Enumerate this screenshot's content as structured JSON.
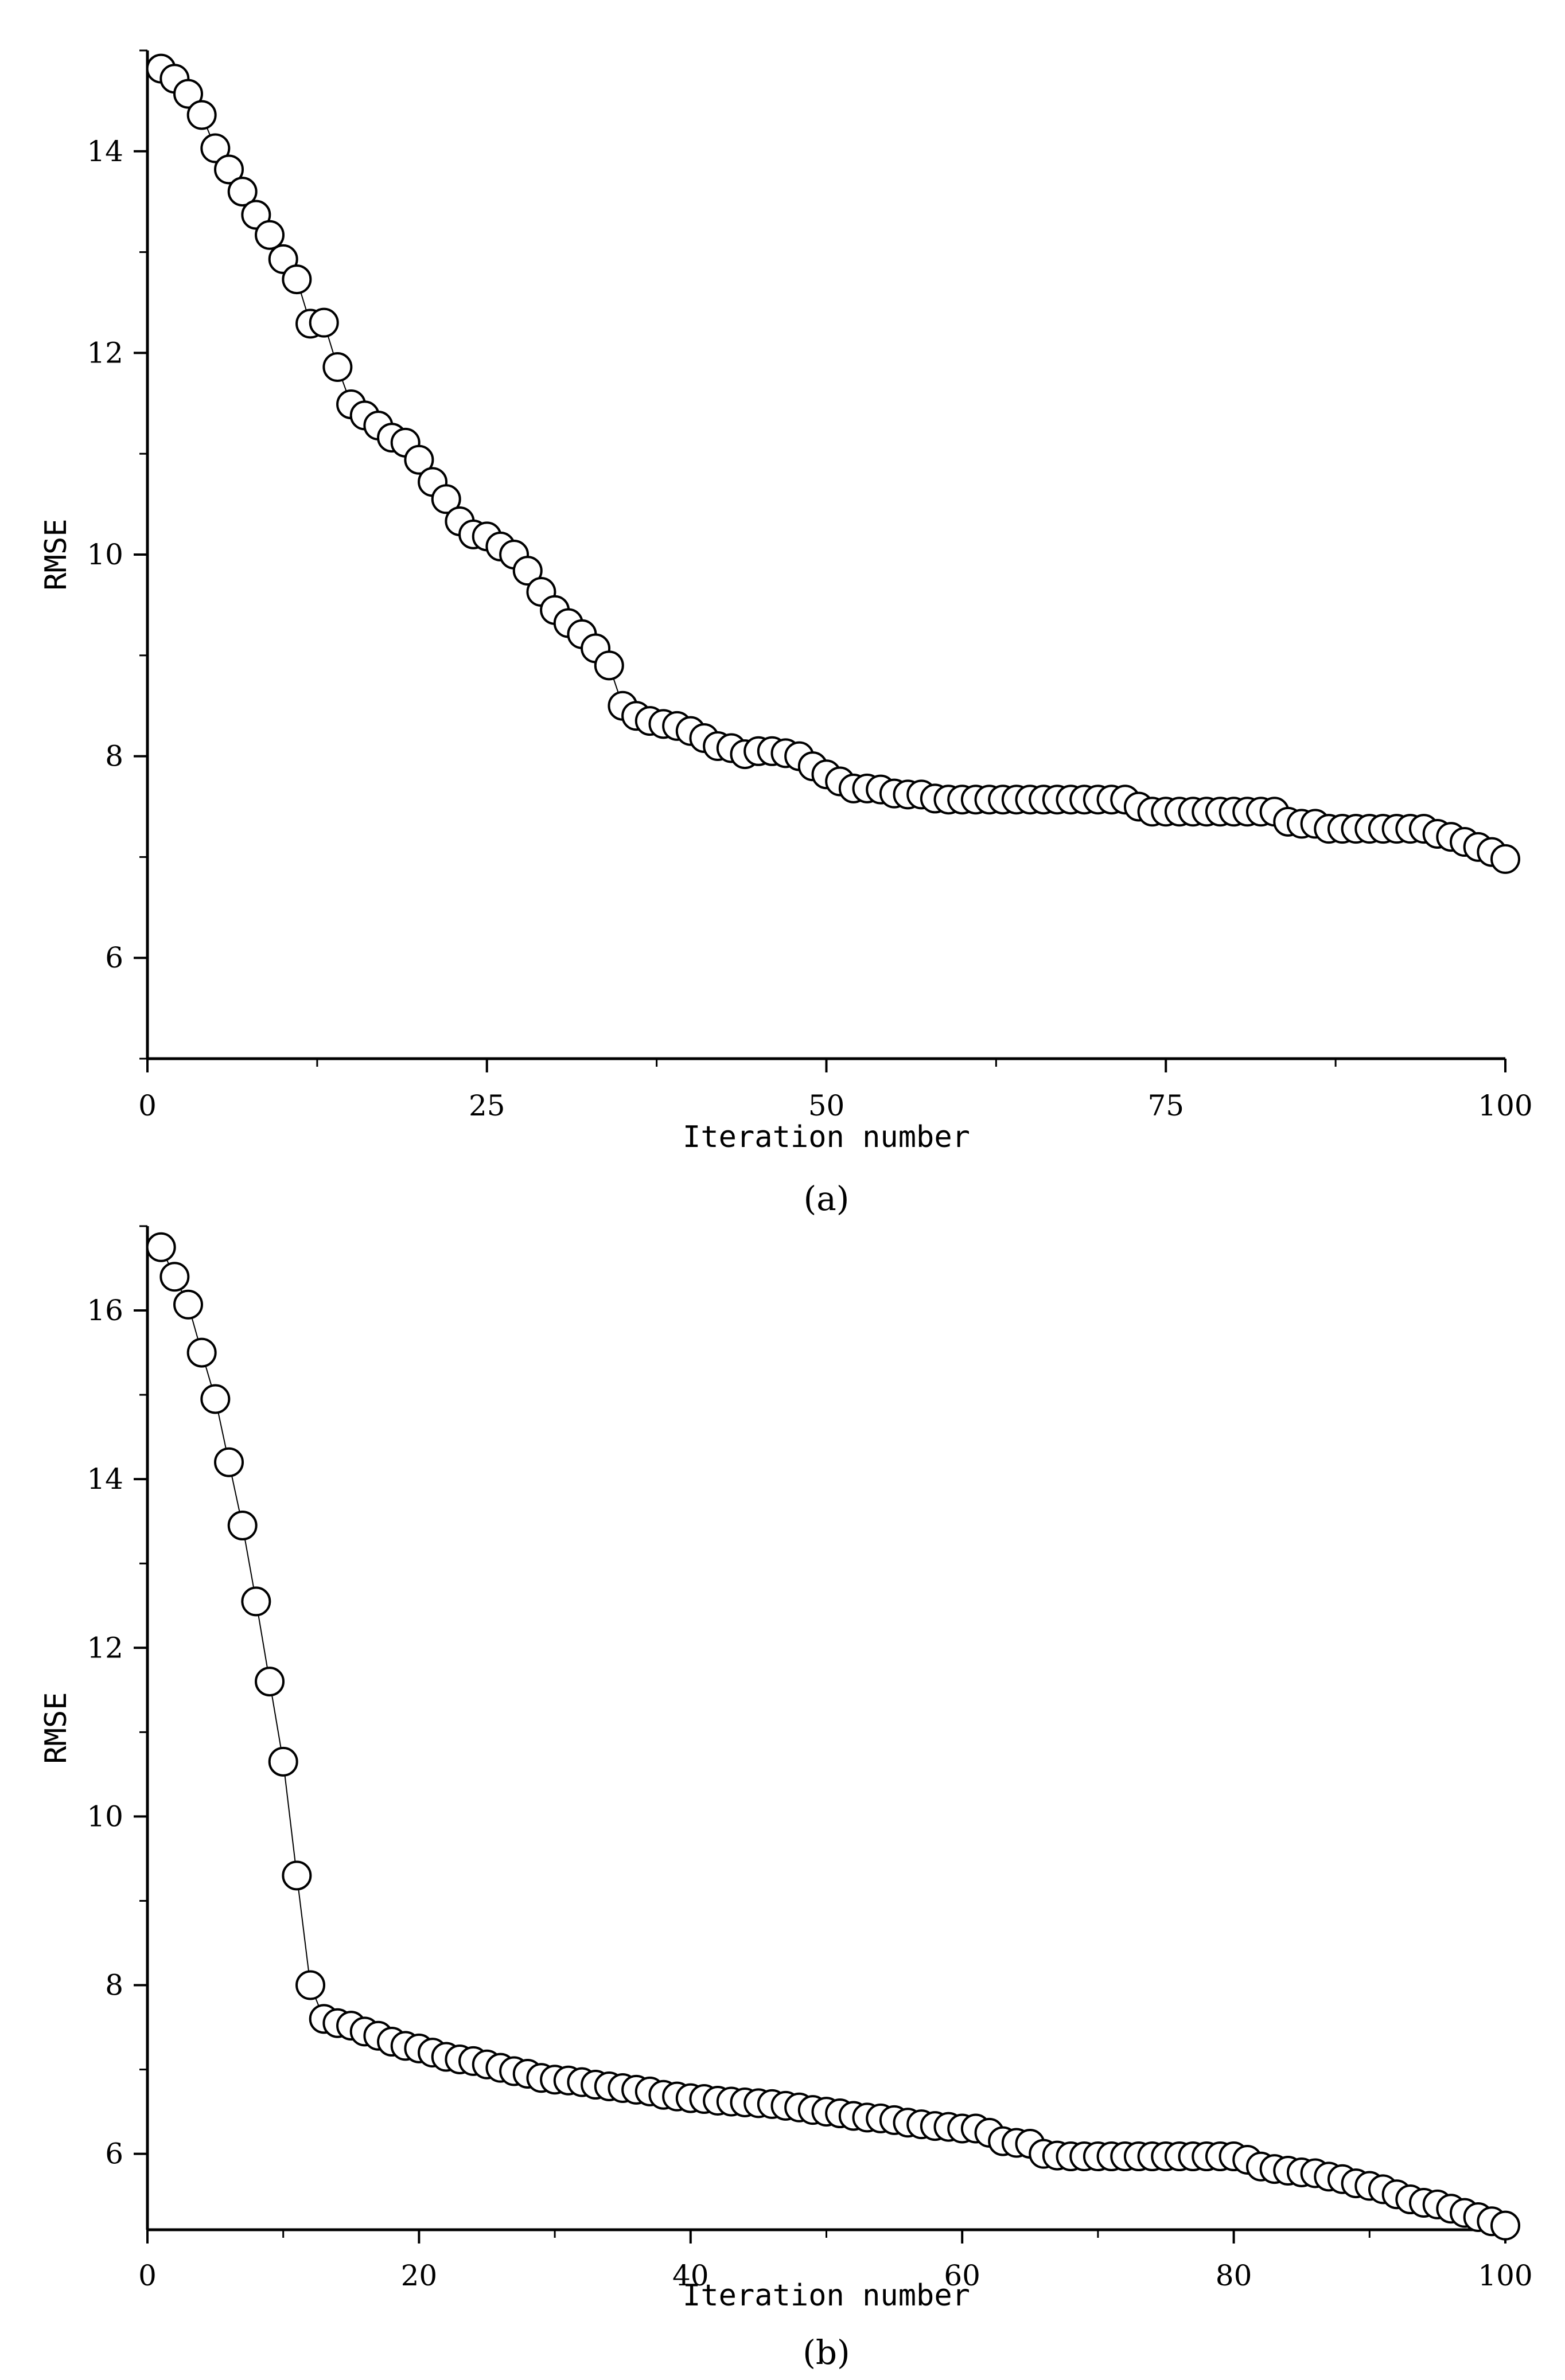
{
  "chart_data": [
    {
      "type": "scatter",
      "panel": "(a)",
      "panel_letter": "a",
      "xlabel": "Iteration number",
      "ylabel": "RMSE",
      "xlim": [
        0,
        100
      ],
      "ylim": [
        5,
        15
      ],
      "xticks": [
        0,
        25,
        50,
        75,
        100
      ],
      "yticks": [
        6,
        8,
        10,
        12,
        14
      ],
      "xtick_labels": [
        "0",
        "25",
        "50",
        "75",
        "100"
      ],
      "ytick_labels": [
        "6",
        "8",
        "10",
        "12",
        "14"
      ],
      "marker": "open-circle",
      "connected": true,
      "x": [
        1,
        2,
        3,
        4,
        5,
        6,
        7,
        8,
        9,
        10,
        11,
        12,
        13,
        14,
        15,
        16,
        17,
        18,
        19,
        20,
        21,
        22,
        23,
        24,
        25,
        26,
        27,
        28,
        29,
        30,
        31,
        32,
        33,
        34,
        35,
        36,
        37,
        38,
        39,
        40,
        41,
        42,
        43,
        44,
        45,
        46,
        47,
        48,
        49,
        50,
        51,
        52,
        53,
        54,
        55,
        56,
        57,
        58,
        59,
        60,
        61,
        62,
        63,
        64,
        65,
        66,
        67,
        68,
        69,
        70,
        71,
        72,
        73,
        74,
        75,
        76,
        77,
        78,
        79,
        80,
        81,
        82,
        83,
        84,
        85,
        86,
        87,
        88,
        89,
        90,
        91,
        92,
        93,
        94,
        95,
        96,
        97,
        98,
        99,
        100
      ],
      "y": [
        14.82,
        14.72,
        14.57,
        14.36,
        14.03,
        13.82,
        13.6,
        13.37,
        13.17,
        12.93,
        12.73,
        12.29,
        12.3,
        11.86,
        11.49,
        11.38,
        11.28,
        11.16,
        11.11,
        10.94,
        10.72,
        10.55,
        10.33,
        10.2,
        10.18,
        10.08,
        10.0,
        9.84,
        9.63,
        9.45,
        9.32,
        9.21,
        9.07,
        8.9,
        8.5,
        8.4,
        8.35,
        8.32,
        8.3,
        8.25,
        8.18,
        8.1,
        8.08,
        8.02,
        8.05,
        8.05,
        8.03,
        8.0,
        7.9,
        7.82,
        7.75,
        7.68,
        7.68,
        7.67,
        7.63,
        7.62,
        7.62,
        7.58,
        7.57,
        7.57,
        7.57,
        7.57,
        7.57,
        7.57,
        7.57,
        7.57,
        7.57,
        7.57,
        7.57,
        7.57,
        7.57,
        7.57,
        7.5,
        7.45,
        7.45,
        7.45,
        7.45,
        7.45,
        7.45,
        7.45,
        7.45,
        7.45,
        7.45,
        7.35,
        7.33,
        7.33,
        7.28,
        7.28,
        7.28,
        7.28,
        7.28,
        7.28,
        7.28,
        7.28,
        7.23,
        7.2,
        7.15,
        7.1,
        7.05,
        6.98
      ]
    },
    {
      "type": "scatter",
      "panel": "(b)",
      "panel_letter": "b",
      "xlabel": "Iteration number",
      "ylabel": "RMSE",
      "xlim": [
        0,
        100
      ],
      "ylim": [
        5.1,
        17.0
      ],
      "xticks": [
        0,
        20,
        40,
        60,
        80,
        100
      ],
      "yticks": [
        6,
        8,
        10,
        12,
        14,
        16
      ],
      "xtick_labels": [
        "0",
        "20",
        "40",
        "60",
        "80",
        "100"
      ],
      "ytick_labels": [
        "6",
        "8",
        "10",
        "12",
        "14",
        "16"
      ],
      "marker": "open-circle",
      "connected": true,
      "x": [
        1,
        2,
        3,
        4,
        5,
        6,
        7,
        8,
        9,
        10,
        11,
        12,
        13,
        14,
        15,
        16,
        17,
        18,
        19,
        20,
        21,
        22,
        23,
        24,
        25,
        26,
        27,
        28,
        29,
        30,
        31,
        32,
        33,
        34,
        35,
        36,
        37,
        38,
        39,
        40,
        41,
        42,
        43,
        44,
        45,
        46,
        47,
        48,
        49,
        50,
        51,
        52,
        53,
        54,
        55,
        56,
        57,
        58,
        59,
        60,
        61,
        62,
        63,
        64,
        65,
        66,
        67,
        68,
        69,
        70,
        71,
        72,
        73,
        74,
        75,
        76,
        77,
        78,
        79,
        80,
        81,
        82,
        83,
        84,
        85,
        86,
        87,
        88,
        89,
        90,
        91,
        92,
        93,
        94,
        95,
        96,
        97,
        98,
        99,
        100
      ],
      "y": [
        16.75,
        16.4,
        16.07,
        15.5,
        14.95,
        14.2,
        13.45,
        12.55,
        11.6,
        10.65,
        9.3,
        8.0,
        7.6,
        7.55,
        7.52,
        7.45,
        7.4,
        7.33,
        7.28,
        7.25,
        7.2,
        7.15,
        7.12,
        7.1,
        7.06,
        7.02,
        6.98,
        6.95,
        6.9,
        6.88,
        6.87,
        6.85,
        6.82,
        6.8,
        6.78,
        6.76,
        6.74,
        6.7,
        6.68,
        6.66,
        6.65,
        6.63,
        6.62,
        6.61,
        6.6,
        6.59,
        6.57,
        6.55,
        6.52,
        6.5,
        6.48,
        6.45,
        6.43,
        6.42,
        6.4,
        6.37,
        6.35,
        6.33,
        6.32,
        6.3,
        6.3,
        6.25,
        6.15,
        6.13,
        6.12,
        6.0,
        5.98,
        5.97,
        5.97,
        5.97,
        5.97,
        5.97,
        5.97,
        5.97,
        5.97,
        5.97,
        5.97,
        5.97,
        5.97,
        5.97,
        5.93,
        5.85,
        5.82,
        5.8,
        5.78,
        5.77,
        5.73,
        5.7,
        5.65,
        5.62,
        5.58,
        5.52,
        5.46,
        5.42,
        5.4,
        5.35,
        5.3,
        5.25,
        5.2,
        5.15
      ]
    }
  ]
}
